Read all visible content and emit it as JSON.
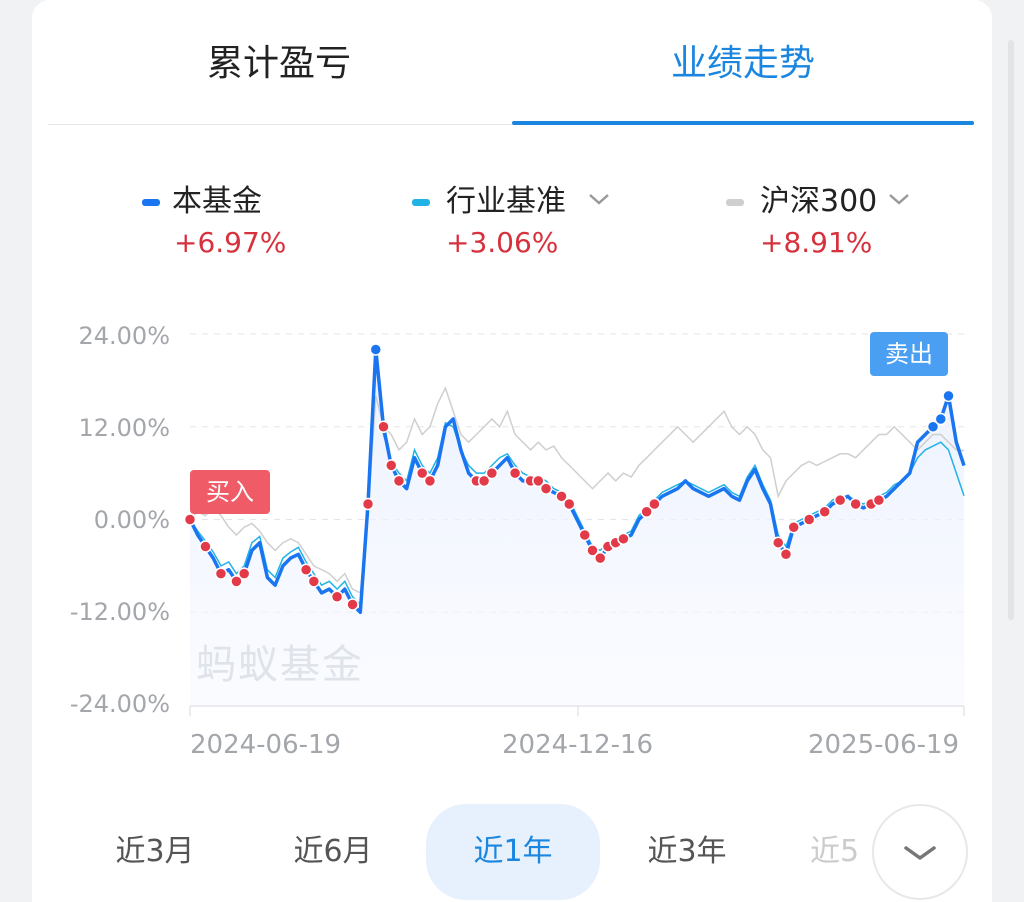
{
  "tabs": [
    {
      "label": "累计盈亏",
      "active": false
    },
    {
      "label": "业绩走势",
      "active": true
    }
  ],
  "legend": [
    {
      "name": "本基金",
      "value": "+6.97%",
      "color": "#1a75f0",
      "has_dropdown": false
    },
    {
      "name": "行业基准",
      "value": "+3.06%",
      "color": "#22b3e6",
      "has_dropdown": true
    },
    {
      "name": "沪深300",
      "value": "+8.91%",
      "color": "#cfcfcf",
      "has_dropdown": true
    }
  ],
  "chart_data": {
    "type": "line",
    "ylim": [
      -24,
      24
    ],
    "y_ticks": [
      "24.00%",
      "12.00%",
      "0.00%",
      "-12.00%",
      "-24.00%"
    ],
    "x_ticks": [
      "2024-06-19",
      "2024-12-16",
      "2025-06-19"
    ],
    "watermark": "蚂蚁基金",
    "annotations": {
      "buy": "买入",
      "sell": "卖出"
    },
    "series": [
      {
        "name": "本基金",
        "color": "#1a75f0",
        "x": [
          0,
          1,
          2,
          3,
          4,
          5,
          6,
          7,
          8,
          9,
          10,
          11,
          12,
          13,
          14,
          15,
          16,
          17,
          18,
          19,
          20,
          21,
          22,
          23,
          24,
          25,
          26,
          27,
          28,
          29,
          30,
          31,
          32,
          33,
          34,
          35,
          36,
          37,
          38,
          39,
          40,
          41,
          42,
          43,
          44,
          45,
          46,
          47,
          48,
          49,
          50,
          51,
          52,
          53,
          54,
          55,
          56,
          57,
          58,
          59,
          60,
          61,
          62,
          63,
          64,
          65,
          66,
          67,
          68,
          69,
          70,
          71,
          72,
          73,
          74,
          75,
          76,
          77,
          78,
          79,
          80,
          81,
          82,
          83,
          84,
          85,
          86,
          87,
          88,
          89,
          90,
          91,
          92,
          93,
          94,
          95,
          96,
          97,
          98,
          99,
          100
        ],
        "y": [
          0,
          -2,
          -3.5,
          -5,
          -7,
          -6.5,
          -8,
          -7,
          -4,
          -3,
          -7.5,
          -8.5,
          -6,
          -5,
          -4.5,
          -6.5,
          -8,
          -9.5,
          -9,
          -10,
          -9,
          -11,
          -12,
          2,
          22,
          12,
          7,
          5,
          4,
          8,
          6,
          5,
          7,
          12,
          13,
          9,
          6,
          5,
          5,
          6,
          7,
          8,
          6,
          5,
          5,
          5,
          4,
          3.5,
          3,
          2,
          0,
          -2,
          -4,
          -5,
          -3.5,
          -3,
          -2.5,
          -2,
          0,
          1,
          2,
          3,
          3.5,
          4,
          5,
          4,
          3.5,
          3,
          3.5,
          4,
          3,
          2.5,
          5,
          6.5,
          4,
          2,
          -3,
          -4.5,
          -1,
          -0.5,
          0,
          0.5,
          1,
          2,
          2.5,
          3,
          2,
          1.5,
          2,
          2.5,
          3,
          4,
          5,
          6,
          10,
          11,
          12,
          13,
          16,
          10,
          6.97
        ]
      },
      {
        "name": "行业基准",
        "color": "#22b3e6",
        "x": [
          0,
          1,
          2,
          3,
          4,
          5,
          6,
          7,
          8,
          9,
          10,
          11,
          12,
          13,
          14,
          15,
          16,
          17,
          18,
          19,
          20,
          21,
          22,
          23,
          24,
          25,
          26,
          27,
          28,
          29,
          30,
          31,
          32,
          33,
          34,
          35,
          36,
          37,
          38,
          39,
          40,
          41,
          42,
          43,
          44,
          45,
          46,
          47,
          48,
          49,
          50,
          51,
          52,
          53,
          54,
          55,
          56,
          57,
          58,
          59,
          60,
          61,
          62,
          63,
          64,
          65,
          66,
          67,
          68,
          69,
          70,
          71,
          72,
          73,
          74,
          75,
          76,
          77,
          78,
          79,
          80,
          81,
          82,
          83,
          84,
          85,
          86,
          87,
          88,
          89,
          90,
          91,
          92,
          93,
          94,
          95,
          96,
          97,
          98,
          99,
          100
        ],
        "y": [
          0,
          -1.5,
          -2.8,
          -4.2,
          -6,
          -5.5,
          -7,
          -6,
          -3,
          -2.2,
          -6.5,
          -7.5,
          -5,
          -4.2,
          -3.6,
          -5.5,
          -7,
          -8.5,
          -8,
          -9,
          -8,
          -10,
          -11,
          3,
          21,
          11,
          7.5,
          6,
          5,
          9,
          7,
          6,
          8,
          12.5,
          12,
          9,
          7,
          6,
          6,
          7,
          8,
          8.5,
          7,
          6,
          5.5,
          5.5,
          5,
          4,
          3.5,
          2.5,
          0.5,
          -1.5,
          -3.5,
          -4,
          -3,
          -2.5,
          -2,
          -1.5,
          0.5,
          1.5,
          2.5,
          3.5,
          4,
          4.5,
          5,
          4.5,
          4,
          3.5,
          4,
          4.5,
          3.5,
          3,
          5.5,
          7,
          4.5,
          2.5,
          -2,
          -3.5,
          -0.5,
          0,
          0.5,
          1,
          1.5,
          2.5,
          3,
          3,
          2.5,
          2,
          2.5,
          3,
          3.5,
          4.5,
          5,
          6,
          8,
          9,
          9.5,
          10,
          9,
          6,
          3.06
        ]
      },
      {
        "name": "沪深300",
        "color": "#cfcfcf",
        "x": [
          0,
          1,
          2,
          3,
          4,
          5,
          6,
          7,
          8,
          9,
          10,
          11,
          12,
          13,
          14,
          15,
          16,
          17,
          18,
          19,
          20,
          21,
          22,
          23,
          24,
          25,
          26,
          27,
          28,
          29,
          30,
          31,
          32,
          33,
          34,
          35,
          36,
          37,
          38,
          39,
          40,
          41,
          42,
          43,
          44,
          45,
          46,
          47,
          48,
          49,
          50,
          51,
          52,
          53,
          54,
          55,
          56,
          57,
          58,
          59,
          60,
          61,
          62,
          63,
          64,
          65,
          66,
          67,
          68,
          69,
          70,
          71,
          72,
          73,
          74,
          75,
          76,
          77,
          78,
          79,
          80,
          81,
          82,
          83,
          84,
          85,
          86,
          87,
          88,
          89,
          90,
          91,
          92,
          93,
          94,
          95,
          96,
          97,
          98,
          99,
          100
        ],
        "y": [
          0,
          1,
          0.5,
          1.5,
          0.5,
          -1,
          -2,
          -1,
          -0.5,
          -1.5,
          -3,
          -4,
          -3,
          -2.5,
          -3,
          -4.5,
          -6,
          -6.5,
          -7,
          -8,
          -7,
          -9,
          -9.5,
          1,
          16,
          12,
          11,
          9,
          10,
          13,
          11,
          12,
          15,
          17,
          14,
          11,
          10,
          11,
          12,
          13,
          12,
          14,
          11,
          10,
          9,
          10,
          9,
          9.5,
          8,
          7,
          6,
          5,
          4,
          5,
          6,
          5,
          6,
          5.5,
          7,
          8,
          9,
          10,
          11,
          12,
          11,
          10,
          11,
          12,
          13,
          14,
          12,
          11,
          12,
          11,
          9,
          8,
          3,
          5,
          6,
          7,
          7.5,
          7,
          7.5,
          8,
          8.5,
          8.5,
          8,
          9,
          10,
          11,
          11,
          12,
          11,
          10,
          9,
          10,
          11,
          11,
          10,
          9,
          8.91
        ]
      }
    ]
  },
  "periods": [
    {
      "label": "近3月",
      "active": false
    },
    {
      "label": "近6月",
      "active": false
    },
    {
      "label": "近1年",
      "active": true
    },
    {
      "label": "近3年",
      "active": false
    },
    {
      "label": "近5",
      "active": false
    }
  ]
}
